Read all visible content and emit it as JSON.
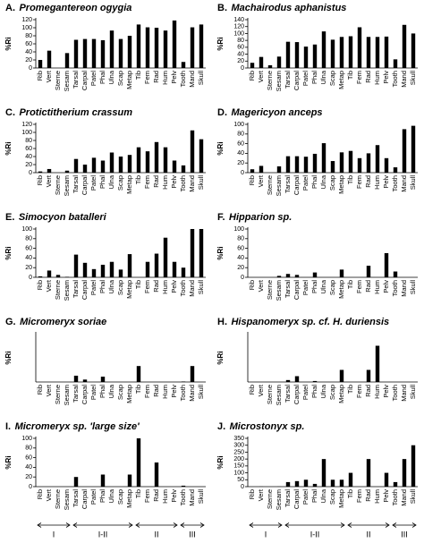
{
  "chart_data": [
    {
      "type": "bar",
      "label": "A.",
      "title": "Promegantereon ogygia",
      "y_label": "%Ri",
      "color": "#000000",
      "categories": [
        "Rib",
        "Vert",
        "Sterne",
        "Sesam",
        "Tarsal",
        "Carpal",
        "Patel",
        "Phal",
        "Ulna",
        "Scap",
        "Metap",
        "Tib",
        "Fem",
        "Rad",
        "Hum",
        "Pelv",
        "Tooth",
        "Mand",
        "Skull"
      ],
      "values": [
        20,
        43,
        0,
        37,
        70,
        72,
        72,
        69,
        93,
        72,
        80,
        108,
        101,
        100,
        93,
        118,
        15,
        101,
        108
      ],
      "ylim": [
        0,
        120
      ],
      "yticks": [
        0,
        20,
        40,
        60,
        80,
        100,
        120
      ]
    },
    {
      "type": "bar",
      "label": "B.",
      "title": "Machairodus aphanistus",
      "y_label": "%Ri",
      "color": "#000000",
      "categories": [
        "Rib",
        "Vert",
        "Sterne",
        "Sesam",
        "Tarsal",
        "Carpal",
        "Patel",
        "Phal",
        "Ulna",
        "Scap",
        "Metap",
        "Tib",
        "Fem",
        "Rad",
        "Hum",
        "Pelv",
        "Tooth",
        "Mand",
        "Skull"
      ],
      "values": [
        15,
        32,
        8,
        33,
        76,
        75,
        62,
        68,
        106,
        82,
        90,
        92,
        118,
        90,
        90,
        91,
        25,
        125,
        100
      ],
      "ylim": [
        0,
        140
      ],
      "yticks": [
        0,
        20,
        40,
        60,
        80,
        100,
        120,
        140
      ]
    },
    {
      "type": "bar",
      "label": "C.",
      "title": "Protictitherium crassum",
      "y_label": "%Ri",
      "color": "#000000",
      "categories": [
        "Rib",
        "Vert",
        "Sterne",
        "Sesam",
        "Tarsal",
        "Carpal",
        "Patel",
        "Phal",
        "Ulna",
        "Scap",
        "Metap",
        "Tib",
        "Fem",
        "Rad",
        "Hum",
        "Pelv",
        "Tooth",
        "Mand",
        "Skull"
      ],
      "values": [
        3,
        9,
        0,
        5,
        34,
        20,
        37,
        30,
        50,
        40,
        44,
        63,
        53,
        76,
        63,
        30,
        18,
        105,
        83
      ],
      "ylim": [
        0,
        120
      ],
      "yticks": [
        0,
        20,
        40,
        60,
        80,
        100,
        120
      ]
    },
    {
      "type": "bar",
      "label": "D.",
      "title": "Magericyon anceps",
      "y_label": "%Ri",
      "color": "#000000",
      "categories": [
        "Rib",
        "Vert",
        "Sterne",
        "Sesam",
        "Tarsal",
        "Carpal",
        "Patel",
        "Phal",
        "Ulna",
        "Scap",
        "Metap",
        "Tib",
        "Fem",
        "Rad",
        "Hum",
        "Pelv",
        "Tooth",
        "Mand",
        "Skull"
      ],
      "values": [
        7,
        14,
        0,
        13,
        34,
        34,
        33,
        39,
        61,
        24,
        42,
        45,
        30,
        40,
        57,
        30,
        11,
        90,
        97
      ],
      "ylim": [
        0,
        100
      ],
      "yticks": [
        0,
        20,
        40,
        60,
        80,
        100
      ]
    },
    {
      "type": "bar",
      "label": "E.",
      "title": "Simocyon batalleri",
      "y_label": "%Ri",
      "color": "#000000",
      "categories": [
        "Rib",
        "Vert",
        "Sterne",
        "Sesam",
        "Tarsal",
        "Carpal",
        "Patel",
        "Phal",
        "Ulna",
        "Scap",
        "Metap",
        "Tib",
        "Fem",
        "Rad",
        "Hum",
        "Pelv",
        "Tooth",
        "Mand",
        "Skull"
      ],
      "values": [
        2,
        14,
        5,
        1,
        47,
        30,
        17,
        26,
        32,
        16,
        48,
        0,
        32,
        49,
        82,
        32,
        20,
        100,
        100
      ],
      "ylim": [
        0,
        100
      ],
      "yticks": [
        0,
        20,
        40,
        60,
        80,
        100
      ]
    },
    {
      "type": "bar",
      "label": "F.",
      "title": "Hipparion sp.",
      "y_label": "%Ri",
      "color": "#000000",
      "categories": [
        "Rib",
        "Vert",
        "Sterne",
        "Sesam",
        "Tarsal",
        "Carpal",
        "Patel",
        "Phal",
        "Ulna",
        "Scap",
        "Metap",
        "Tib",
        "Fem",
        "Rad",
        "Hum",
        "Pelv",
        "Tooth",
        "Mand",
        "Skull"
      ],
      "values": [
        0,
        0,
        0,
        3,
        7,
        5,
        0,
        10,
        0,
        0,
        16,
        0,
        0,
        24,
        0,
        50,
        12,
        0,
        0
      ],
      "ylim": [
        0,
        100
      ],
      "yticks": [
        0,
        20,
        40,
        60,
        80,
        100
      ]
    },
    {
      "type": "bar",
      "label": "G.",
      "title": "Micromeryx soriae",
      "y_label": "%Ri",
      "color": "#000000",
      "categories": [
        "Rib",
        "Vert",
        "Sterne",
        "Sesam",
        "Tarsal",
        "Carpal",
        "Patel",
        "Phal",
        "Ulna",
        "Scap",
        "Metap",
        "Tib",
        "Fem",
        "Rad",
        "Hum",
        "Pelv",
        "Tooth",
        "Mand",
        "Skull"
      ],
      "values": [
        0,
        0,
        0,
        0,
        13,
        5,
        0,
        11,
        0,
        0,
        0,
        33,
        0,
        0,
        0,
        0,
        1,
        33,
        0
      ],
      "ylim": [
        0,
        100
      ]
    },
    {
      "type": "bar",
      "label": "H.",
      "title": "Hispanomeryx sp. cf. H. duriensis",
      "y_label": "%Ri",
      "color": "#000000",
      "categories": [
        "Rib",
        "Vert",
        "Sterne",
        "Sesam",
        "Tarsal",
        "Carpal",
        "Patel",
        "Phal",
        "Ulna",
        "Scap",
        "Metap",
        "Tib",
        "Fem",
        "Rad",
        "Hum",
        "Pelv",
        "Tooth",
        "Mand",
        "Skull"
      ],
      "values": [
        0,
        0,
        0,
        0,
        4,
        12,
        0,
        2,
        0,
        0,
        25,
        0,
        0,
        25,
        75,
        0,
        0,
        0,
        0
      ],
      "ylim": [
        0,
        100
      ]
    },
    {
      "type": "bar",
      "label": "I.",
      "title": "Micromeryx sp. 'large size'",
      "y_label": "%Ri",
      "color": "#000000",
      "categories": [
        "Rib",
        "Vert",
        "Sterne",
        "Sesam",
        "Tarsal",
        "Carpal",
        "Patel",
        "Phal",
        "Ulna",
        "Scap",
        "Metap",
        "Tib",
        "Fem",
        "Rad",
        "Hum",
        "Pelv",
        "Tooth",
        "Mand",
        "Skull"
      ],
      "values": [
        0,
        0,
        0,
        0,
        20,
        0,
        0,
        25,
        0,
        0,
        25,
        100,
        0,
        50,
        0,
        0,
        2,
        0,
        0
      ],
      "ylim": [
        0,
        100
      ],
      "yticks": [
        0,
        20,
        40,
        60,
        80,
        100
      ]
    },
    {
      "type": "bar",
      "label": "J.",
      "title": "Microstonyx sp.",
      "y_label": "%Ri",
      "color": "#000000",
      "categories": [
        "Rib",
        "Vert",
        "Sterne",
        "Sesam",
        "Tarsal",
        "Carpal",
        "Patel",
        "Phal",
        "Ulna",
        "Scap",
        "Metap",
        "Tib",
        "Fem",
        "Rad",
        "Hum",
        "Pelv",
        "Tooth",
        "Mand",
        "Skull"
      ],
      "values": [
        0,
        1,
        0,
        1,
        33,
        40,
        50,
        20,
        200,
        50,
        50,
        100,
        0,
        200,
        0,
        100,
        33,
        200,
        300
      ],
      "ylim": [
        0,
        350
      ],
      "yticks": [
        0,
        50,
        100,
        150,
        200,
        250,
        300,
        350
      ]
    }
  ],
  "group_axis": {
    "groups": [
      {
        "label": "I",
        "span": 4
      },
      {
        "label": "I-II",
        "span": 7
      },
      {
        "label": "II",
        "span": 5
      },
      {
        "label": "III",
        "span": 3
      }
    ]
  }
}
